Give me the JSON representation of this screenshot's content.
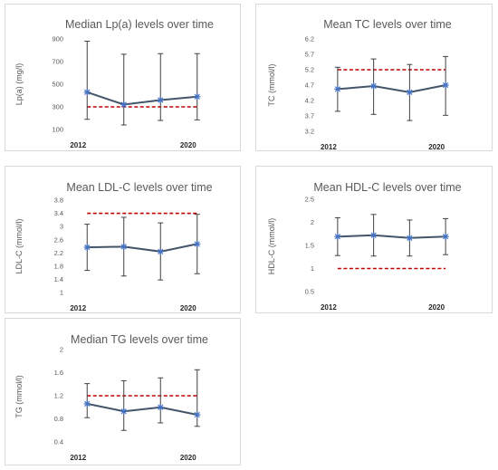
{
  "chart_data": [
    {
      "type": "line",
      "title": "Median Lp(a) levels over time",
      "ylabel": "Lp(a) (mg/l)",
      "x_labels": [
        "2012",
        "",
        "",
        "2020"
      ],
      "yticks": [
        100,
        300,
        500,
        700,
        900
      ],
      "ylim": [
        100,
        900
      ],
      "values": [
        430,
        320,
        360,
        390
      ],
      "err_low": [
        190,
        140,
        180,
        185
      ],
      "err_high": [
        880,
        765,
        770,
        770
      ],
      "reference_line": 300
    },
    {
      "type": "line",
      "title": "Mean TC levels over time",
      "ylabel": "TC (mmol/l)",
      "x_labels": [
        "2012",
        "",
        "",
        "2020"
      ],
      "yticks": [
        3.2,
        3.7,
        4.2,
        4.7,
        5.2,
        5.7,
        6.2
      ],
      "ylim": [
        3.2,
        6.2
      ],
      "values": [
        4.57,
        4.67,
        4.47,
        4.7
      ],
      "err_low": [
        3.85,
        3.75,
        3.55,
        3.72
      ],
      "err_high": [
        5.28,
        5.55,
        5.37,
        5.63
      ],
      "reference_line": 5.2
    },
    {
      "type": "line",
      "title": "Mean LDL-C levels over time",
      "ylabel": "LDL-C (mmol/l)",
      "x_labels": [
        "2012",
        "",
        "",
        "2020"
      ],
      "yticks": [
        1,
        1.4,
        1.8,
        2.2,
        2.6,
        3,
        3.4,
        3.8
      ],
      "ylim": [
        1,
        3.8
      ],
      "values": [
        2.37,
        2.39,
        2.24,
        2.47
      ],
      "err_low": [
        1.67,
        1.5,
        1.38,
        1.57
      ],
      "err_high": [
        3.07,
        3.28,
        3.11,
        3.37
      ],
      "reference_line": 3.4
    },
    {
      "type": "line",
      "title": "Mean HDL-C levels over time",
      "ylabel": "HDL-C (mmol/l)",
      "x_labels": [
        "2012",
        "",
        "",
        "2020"
      ],
      "yticks": [
        0.5,
        1,
        1.5,
        2,
        2.5
      ],
      "ylim": [
        0.5,
        2.5
      ],
      "values": [
        1.69,
        1.72,
        1.66,
        1.69
      ],
      "err_low": [
        1.28,
        1.27,
        1.27,
        1.3
      ],
      "err_high": [
        2.1,
        2.17,
        2.05,
        2.08
      ],
      "reference_line": 1
    },
    {
      "type": "line",
      "title": "Median TG levels over time",
      "ylabel": "TG (mmol/l)",
      "x_labels": [
        "2012",
        "",
        "",
        "2020"
      ],
      "yticks": [
        0.4,
        0.8,
        1.2,
        1.6,
        2
      ],
      "ylim": [
        0.4,
        2
      ],
      "values": [
        1.06,
        0.93,
        1.0,
        0.87
      ],
      "err_low": [
        0.82,
        0.6,
        0.73,
        0.67
      ],
      "err_high": [
        1.41,
        1.46,
        1.51,
        1.65
      ],
      "reference_line": 1.2
    }
  ],
  "colors": {
    "series": "#44546a",
    "marker": "#4472c4",
    "error_bar": "#404040",
    "reference_line": "#c00000",
    "panel_border": "#d9d9d9",
    "text": "#595959"
  }
}
